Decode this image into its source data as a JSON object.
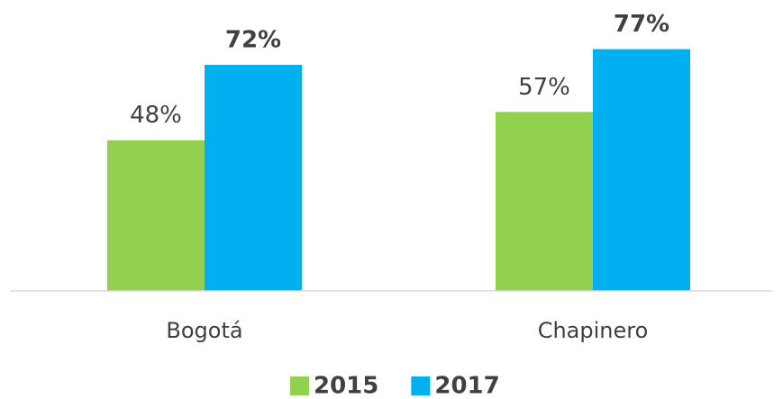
{
  "chart_data": {
    "type": "bar",
    "categories": [
      "Bogotá",
      "Chapinero"
    ],
    "series": [
      {
        "name": "2015",
        "color": "#92d050",
        "font_weight": "normal",
        "values": [
          48,
          57
        ],
        "value_labels": [
          "48%",
          "57%"
        ]
      },
      {
        "name": "2017",
        "color": "#00b0f0",
        "font_weight": "bold",
        "values": [
          72,
          77
        ],
        "value_labels": [
          "72%",
          "77%"
        ]
      }
    ],
    "legend": "bottom"
  }
}
